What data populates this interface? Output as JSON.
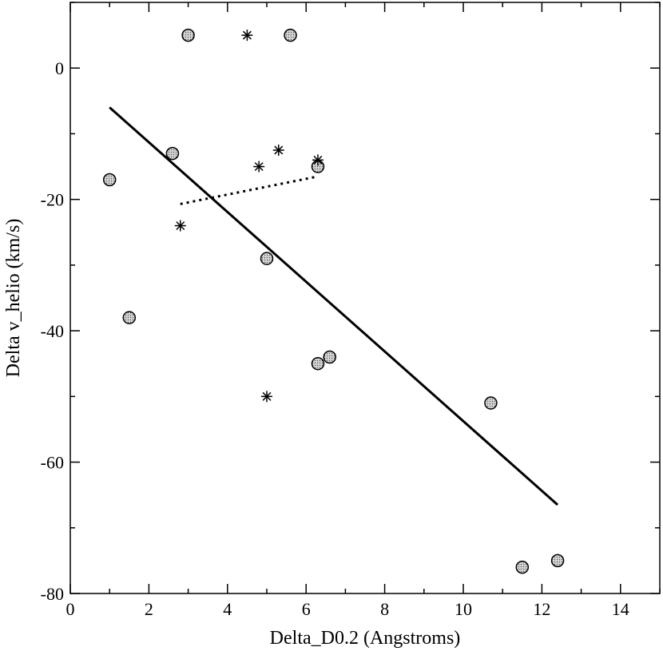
{
  "chart_data": {
    "type": "scatter",
    "xlabel": "Delta_D0.2 (Angstroms)",
    "ylabel": "Delta v_helio (km/s)",
    "xlim": [
      0,
      15
    ],
    "ylim": [
      -80,
      10
    ],
    "x_ticks": [
      0,
      2,
      4,
      6,
      8,
      10,
      12,
      14
    ],
    "y_ticks": [
      0,
      -20,
      -40,
      -60,
      -80
    ],
    "grid": false,
    "series": [
      {
        "marker": "circle",
        "color": "#000000",
        "points": [
          {
            "x": 1.0,
            "y": -17
          },
          {
            "x": 1.5,
            "y": -38
          },
          {
            "x": 2.6,
            "y": -13
          },
          {
            "x": 3.0,
            "y": 5
          },
          {
            "x": 5.0,
            "y": -29
          },
          {
            "x": 5.6,
            "y": 5
          },
          {
            "x": 6.3,
            "y": -15
          },
          {
            "x": 6.3,
            "y": -45
          },
          {
            "x": 6.6,
            "y": -44
          },
          {
            "x": 10.7,
            "y": -51
          },
          {
            "x": 11.5,
            "y": -76
          },
          {
            "x": 12.4,
            "y": -75
          }
        ]
      },
      {
        "marker": "asterisk",
        "color": "#000000",
        "points": [
          {
            "x": 2.8,
            "y": -24
          },
          {
            "x": 4.5,
            "y": 5
          },
          {
            "x": 4.8,
            "y": -15
          },
          {
            "x": 5.0,
            "y": -50
          },
          {
            "x": 5.3,
            "y": -12.5
          },
          {
            "x": 6.3,
            "y": -14
          }
        ]
      }
    ],
    "fit_lines": [
      {
        "style": "solid",
        "x1": 1.0,
        "y1": -6,
        "x2": 12.4,
        "y2": -66.5
      },
      {
        "style": "dotted",
        "x1": 2.8,
        "y1": -20.7,
        "x2": 6.3,
        "y2": -16.5
      }
    ]
  }
}
